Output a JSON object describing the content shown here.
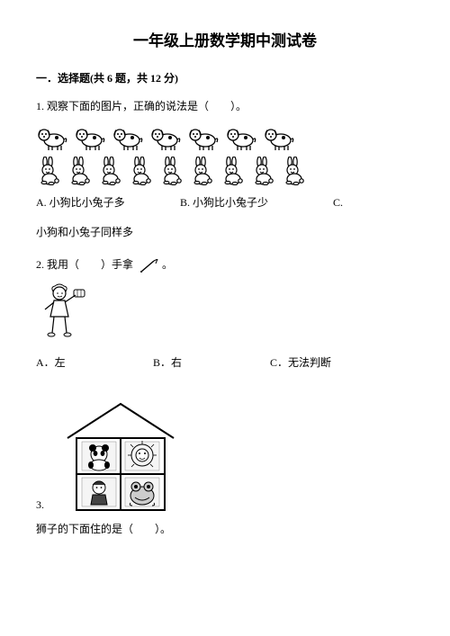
{
  "title": "一年级上册数学期中测试卷",
  "section1": {
    "heading": "一．选择题(共 6 题，共 12 分)",
    "q1": {
      "prompt": "1. 观察下面的图片，正确的说法是（　　）。",
      "dog_count": 7,
      "rabbit_count": 9,
      "optA": "A. 小狗比小兔子多",
      "optB": "B. 小狗比小兔子少",
      "optC": "C.",
      "optC_wrap": "小狗和小兔子同样多"
    },
    "q2": {
      "prompt": "2. 我用（　　）手拿",
      "optA": "A．左",
      "optB": "B．右",
      "optC": "C．无法判断"
    },
    "q3": {
      "num": "3.",
      "below": "狮子的下面住的是（　　）。"
    }
  },
  "colors": {
    "ink": "#222222",
    "line": "#000000",
    "fill_light": "#e8e8e8"
  }
}
